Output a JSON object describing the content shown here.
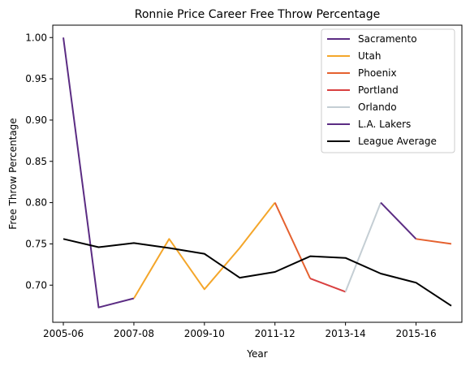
{
  "chart_data": {
    "type": "line",
    "title": "Ronnie Price Career Free Throw Percentage",
    "xlabel": "Year",
    "ylabel": "Free Throw Percentage",
    "seasons": [
      "2005-06",
      "2006-07",
      "2007-08",
      "2008-09",
      "2009-10",
      "2010-11",
      "2011-12",
      "2012-13",
      "2013-14",
      "2014-15",
      "2015-16",
      "2016-17"
    ],
    "x_tick_labels": [
      "2005-06",
      "2007-08",
      "2009-10",
      "2011-12",
      "2013-14",
      "2015-16"
    ],
    "ylim": [
      0.655,
      1.015
    ],
    "y_ticks": [
      "0.70",
      "0.75",
      "0.80",
      "0.85",
      "0.90",
      "0.95",
      "1.00"
    ],
    "grid": false,
    "legend_position": "top-right",
    "series": [
      {
        "name": "Sacramento",
        "color": "#5b2c83",
        "points": [
          [
            "2005-06",
            1.0
          ],
          [
            "2006-07",
            0.673
          ],
          [
            "2007-08",
            0.684
          ]
        ]
      },
      {
        "name": "Utah",
        "color": "#f4a62a",
        "points": [
          [
            "2007-08",
            0.684
          ],
          [
            "2008-09",
            0.756
          ],
          [
            "2009-10",
            0.695
          ],
          [
            "2010-11",
            0.745
          ],
          [
            "2011-12",
            0.8
          ]
        ]
      },
      {
        "name": "Phoenix",
        "color": "#e5612f",
        "points": [
          [
            "2011-12",
            0.8
          ],
          [
            "2012-13",
            0.708
          ]
        ]
      },
      {
        "name": "Portland",
        "color": "#d94040",
        "points": [
          [
            "2012-13",
            0.708
          ],
          [
            "2013-14",
            0.692
          ]
        ]
      },
      {
        "name": "Orlando",
        "color": "#c4ced4",
        "points": [
          [
            "2013-14",
            0.692
          ],
          [
            "2014-15",
            0.8
          ]
        ]
      },
      {
        "name": "L.A. Lakers",
        "color": "#5b2c83",
        "points": [
          [
            "2014-15",
            0.8
          ],
          [
            "2015-16",
            0.756
          ]
        ]
      },
      {
        "name": "Phoenix",
        "color": "#e5612f",
        "legend": false,
        "points": [
          [
            "2015-16",
            0.756
          ],
          [
            "2016-17",
            0.75
          ]
        ]
      },
      {
        "name": "League Average",
        "color": "#000000",
        "points": [
          [
            "2005-06",
            0.756
          ],
          [
            "2006-07",
            0.746
          ],
          [
            "2007-08",
            0.751
          ],
          [
            "2008-09",
            0.745
          ],
          [
            "2009-10",
            0.738
          ],
          [
            "2010-11",
            0.709
          ],
          [
            "2011-12",
            0.716
          ],
          [
            "2012-13",
            0.735
          ],
          [
            "2013-14",
            0.733
          ],
          [
            "2014-15",
            0.714
          ],
          [
            "2015-16",
            0.703
          ],
          [
            "2016-17",
            0.675
          ]
        ]
      }
    ]
  }
}
